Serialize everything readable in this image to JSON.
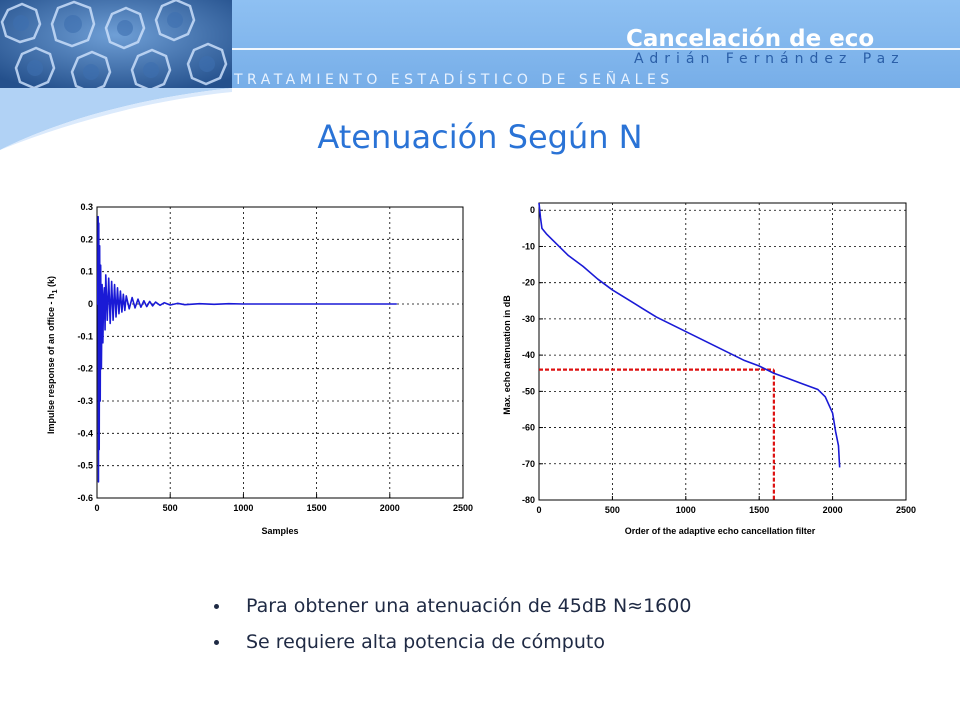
{
  "header": {
    "deck_title": "Cancelación de eco",
    "author": "Adrián Fernández Paz",
    "course": "TRATAMIENTO ESTADÍSTICO DE SEÑALES",
    "colors": {
      "banner": "#7fb3ea",
      "texture": "#2f5f9e",
      "title": "#ffffff",
      "author": "#2b5fa8"
    }
  },
  "slide": {
    "title": "Atenuación Según N",
    "title_color": "#2a73d6"
  },
  "chart_data": [
    {
      "type": "line",
      "xlabel": "Samples",
      "ylabel": "Impulse response of an office - h",
      "ylabel_subscript": "1",
      "ylabel_suffix": " (k)",
      "xlim": [
        0,
        2500
      ],
      "ylim": [
        -0.6,
        0.3
      ],
      "xticks": [
        0,
        500,
        1000,
        1500,
        2000,
        2500
      ],
      "xtick_labels": [
        "0",
        "500",
        "1000",
        "1500",
        "2000",
        "2500"
      ],
      "yticks": [
        0.3,
        0.2,
        0.1,
        0,
        -0.1,
        -0.2,
        -0.3,
        -0.4,
        -0.5,
        -0.6
      ],
      "ytick_labels": [
        "0.3",
        "0.2",
        "0.1",
        "0",
        "-0.1",
        "-0.2",
        "-0.3",
        "-0.4",
        "-0.5",
        "-0.6"
      ],
      "grid": true,
      "color": "#1a1ad6",
      "series": [
        {
          "x": [
            0,
            5,
            8,
            10,
            12,
            15,
            18,
            22,
            25,
            30,
            35,
            40,
            45,
            50,
            55,
            60,
            70,
            80,
            90,
            100,
            110,
            120,
            130,
            140,
            150,
            160,
            170,
            180,
            190,
            200,
            220,
            240,
            260,
            280,
            300,
            320,
            340,
            360,
            380,
            400,
            430,
            460,
            500,
            550,
            600,
            700,
            800,
            900,
            1000,
            1200,
            1400,
            1600,
            1800,
            2000,
            2048
          ],
          "y": [
            0,
            0.0,
            0.27,
            -0.55,
            0.25,
            -0.45,
            0.18,
            -0.3,
            0.12,
            -0.2,
            0.06,
            -0.12,
            0.02,
            0.05,
            -0.08,
            0.09,
            -0.05,
            0.08,
            -0.06,
            0.07,
            -0.05,
            0.06,
            -0.04,
            0.05,
            -0.03,
            0.04,
            -0.025,
            0.03,
            -0.02,
            0.025,
            -0.015,
            0.02,
            -0.012,
            0.015,
            -0.01,
            0.01,
            -0.008,
            0.008,
            -0.006,
            0.006,
            -0.004,
            0.004,
            -0.003,
            0.002,
            -0.002,
            0.001,
            -0.001,
            0.001,
            0,
            0,
            0,
            0,
            0,
            0,
            0
          ]
        }
      ]
    },
    {
      "type": "line",
      "xlabel": "Order of the adaptive echo cancellation filter",
      "ylabel": "Max. echo attenuation in dB",
      "xlim": [
        0,
        2500
      ],
      "ylim": [
        -80,
        2
      ],
      "xticks": [
        0,
        500,
        1000,
        1500,
        2000,
        2500
      ],
      "xtick_labels": [
        "0",
        "500",
        "1000",
        "1500",
        "2000",
        "2500"
      ],
      "yticks": [
        0,
        -10,
        -20,
        -30,
        -40,
        -50,
        -60,
        -70,
        -80
      ],
      "ytick_labels": [
        "0",
        "-10",
        "-20",
        "-30",
        "-40",
        "-50",
        "-60",
        "-70",
        "-80"
      ],
      "grid": true,
      "color": "#1a1ad6",
      "series": [
        {
          "x": [
            0,
            10,
            20,
            50,
            100,
            150,
            200,
            300,
            400,
            500,
            600,
            700,
            800,
            900,
            1000,
            1100,
            1200,
            1300,
            1400,
            1500,
            1600,
            1700,
            1800,
            1900,
            1950,
            2000,
            2020,
            2040,
            2048
          ],
          "y": [
            2,
            -2,
            -5,
            -6.5,
            -8.5,
            -10.5,
            -12.5,
            -15.5,
            -19,
            -22,
            -24.5,
            -27,
            -29.5,
            -31.5,
            -33.5,
            -35.5,
            -37.5,
            -39.5,
            -41.5,
            -43,
            -45,
            -46.5,
            -48,
            -49.5,
            -51.5,
            -56,
            -61,
            -65,
            -71
          ]
        }
      ],
      "reference": {
        "x": 1600,
        "y": -44,
        "color": "#dd1111"
      }
    }
  ],
  "bullets": [
    "Para obtener una atenuación de 45dB N≈1600",
    "Se requiere alta potencia de cómputo"
  ]
}
